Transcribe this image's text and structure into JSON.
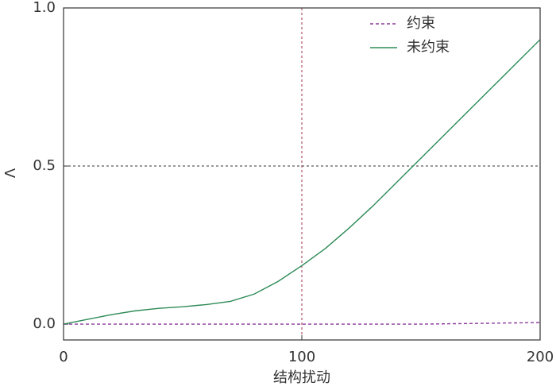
{
  "chart_data": {
    "type": "line",
    "x_label": "结构扰动",
    "y_label": "Λ",
    "x": [
      0,
      10,
      20,
      30,
      40,
      50,
      60,
      70,
      80,
      90,
      100,
      110,
      120,
      130,
      140,
      150,
      160,
      170,
      180,
      190,
      200
    ],
    "series": [
      {
        "name": "约束",
        "color": "#8b3a9c",
        "dash": true,
        "values": [
          0,
          0,
          0,
          0,
          0,
          0,
          0,
          0,
          0,
          0,
          0,
          0,
          0,
          0,
          0,
          0,
          0.001,
          0.002,
          0.003,
          0.004,
          0.005
        ]
      },
      {
        "name": "未约束",
        "color": "#2e8b57",
        "dash": false,
        "values": [
          0,
          0.015,
          0.03,
          0.042,
          0.05,
          0.055,
          0.062,
          0.072,
          0.095,
          0.135,
          0.185,
          0.24,
          0.305,
          0.375,
          0.45,
          0.525,
          0.6,
          0.675,
          0.75,
          0.825,
          0.9
        ]
      }
    ],
    "xlim": [
      0,
      200
    ],
    "xticks": [
      0,
      100,
      200
    ],
    "ylim": [
      -0.05,
      1.0
    ],
    "yticks": [
      {
        "value": 0,
        "label": "0.0"
      },
      0.5,
      {
        "value": 1,
        "label": "1.0"
      }
    ],
    "vline": {
      "value": 100,
      "color": "#a0304a"
    },
    "hline": {
      "value": 0.5,
      "color": "#333333"
    },
    "legend": "upper right"
  }
}
